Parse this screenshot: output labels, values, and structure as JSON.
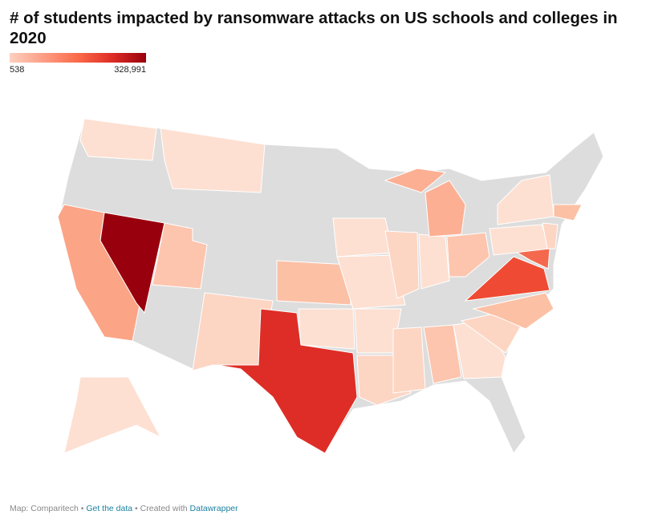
{
  "title": "# of students impacted by ransomware attacks on US schools and colleges in 2020",
  "legend": {
    "min": 538,
    "max": {
      "value": 328991,
      "label": "328,991"
    }
  },
  "footer": {
    "source": "Map: Comparitech",
    "sep": "•",
    "link": "Get the data",
    "created": "Created with",
    "tool": "Datawrapper"
  }
}
